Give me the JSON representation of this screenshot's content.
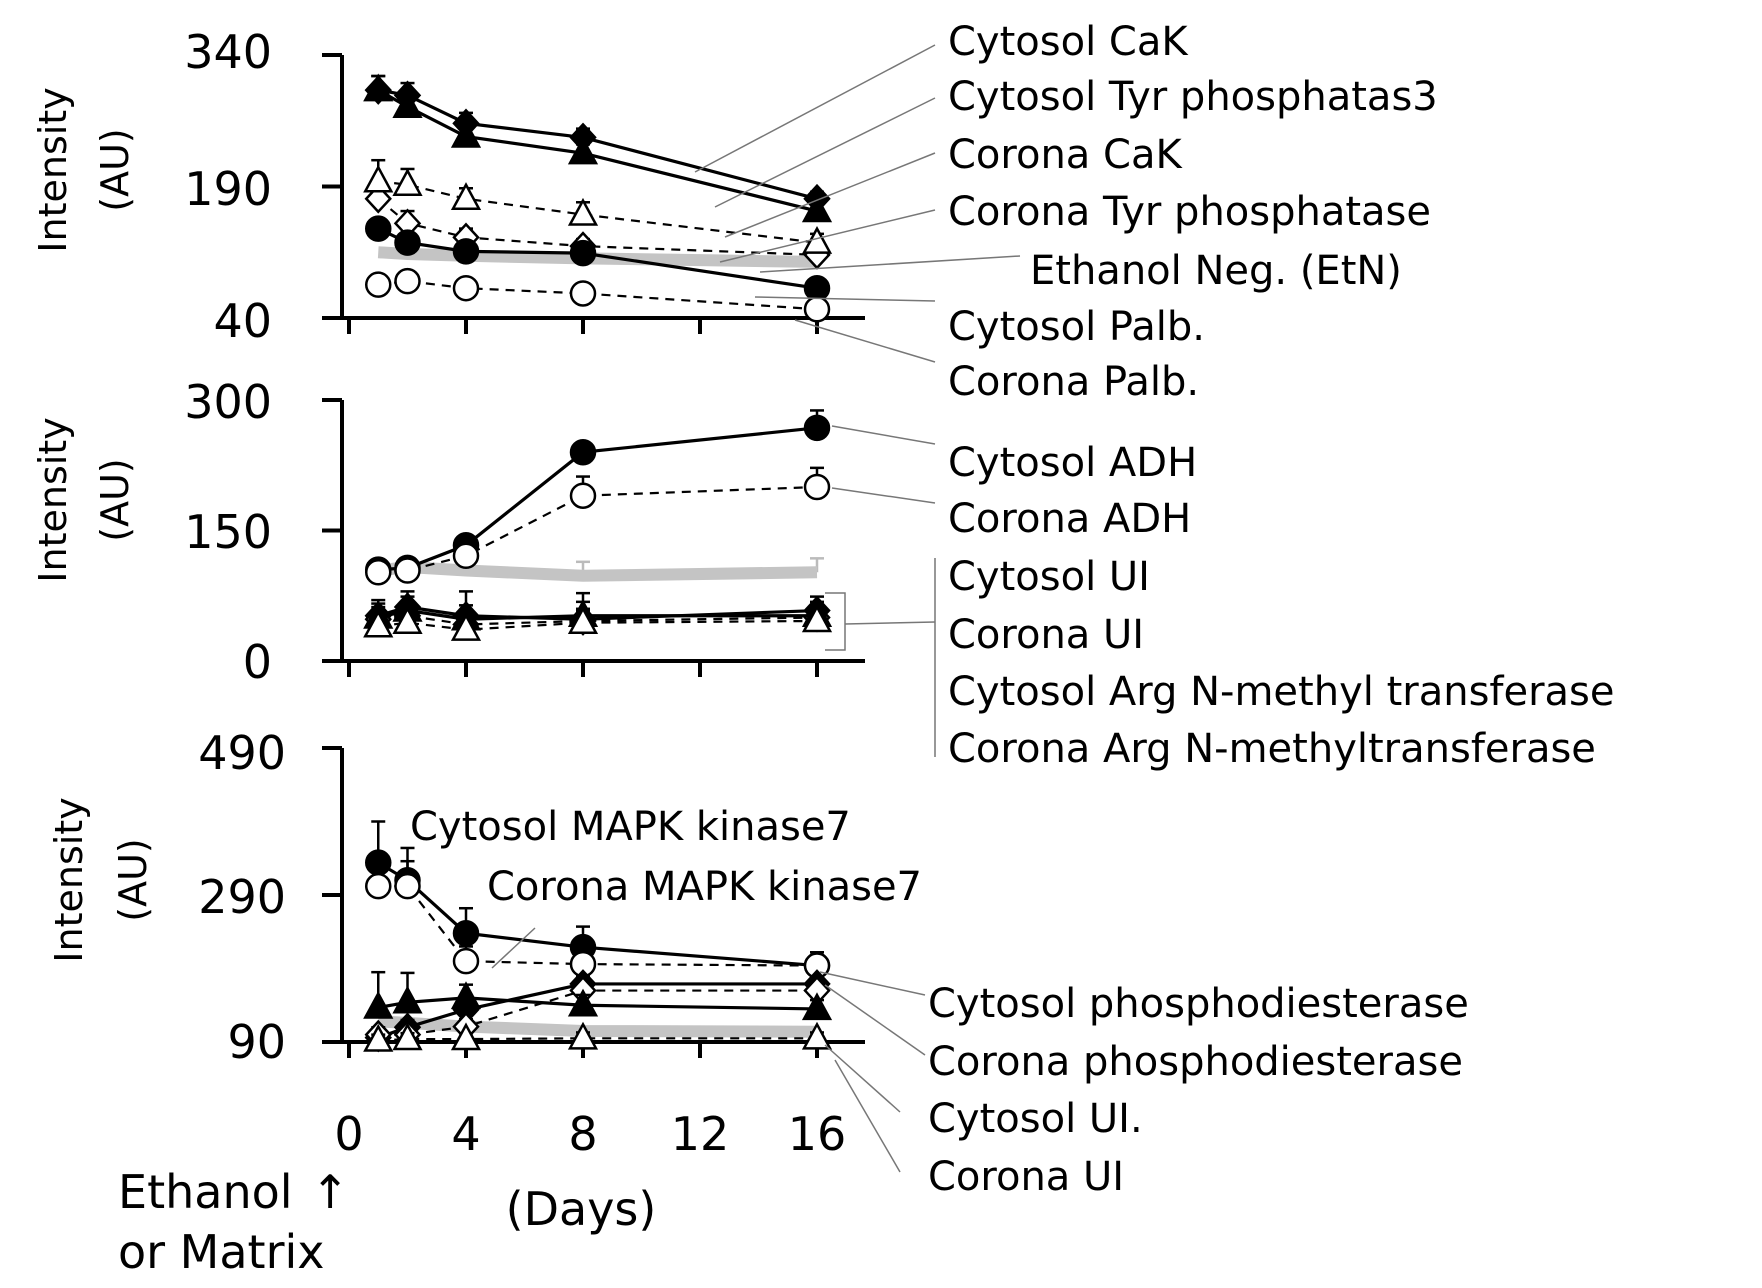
{
  "chart_data": [
    {
      "type": "line",
      "ylabel": [
        "Intensity",
        "(AU)"
      ],
      "ylim": [
        40,
        340
      ],
      "yticks": [
        "340",
        "190",
        "40"
      ],
      "x": [
        1,
        2,
        4,
        8,
        16
      ],
      "series": [
        {
          "name": "Cytosol  CaK",
          "values": [
            300,
            294,
            262,
            246,
            176
          ],
          "marker": "diamond",
          "filled": true,
          "dashed": false,
          "err": [
            16,
            14,
            12,
            10,
            8
          ]
        },
        {
          "name": "Cytosol Tyr phosphatas3",
          "values": [
            300,
            281,
            247,
            228,
            162
          ],
          "marker": "triangle",
          "filled": true,
          "dashed": false,
          "err": [
            16,
            14,
            12,
            10,
            8
          ]
        },
        {
          "name": "Corona CaK",
          "values": [
            176,
            148,
            132,
            122,
            112
          ],
          "marker": "diamond",
          "filled": false,
          "dashed": true,
          "err": [
            14,
            14,
            10,
            8,
            6
          ]
        },
        {
          "name": "Corona Tyr phosphatase",
          "values": [
            196,
            192,
            176,
            158,
            126
          ],
          "marker": "triangle",
          "filled": false,
          "dashed": true,
          "err": [
            24,
            18,
            12,
            14,
            10
          ]
        },
        {
          "name": "Ethanol Neg. (EtN)",
          "values": [
            115,
            113,
            111,
            108,
            104
          ],
          "marker": "none",
          "filled": false,
          "dashed": false,
          "err": [
            0,
            0,
            0,
            0,
            0
          ],
          "gray": true
        },
        {
          "name": "Cytosol Palb.",
          "values": [
            142,
            126,
            116,
            114,
            74
          ],
          "marker": "circle",
          "filled": true,
          "dashed": false,
          "err": [
            0,
            0,
            0,
            0,
            0
          ]
        },
        {
          "name": "Corona Palb.",
          "values": [
            78,
            82,
            74,
            68,
            50
          ],
          "marker": "circle",
          "filled": false,
          "dashed": true,
          "err": [
            0,
            0,
            0,
            0,
            0
          ]
        }
      ]
    },
    {
      "type": "line",
      "ylabel": [
        "Intensity",
        "(AU)"
      ],
      "ylim": [
        0,
        300
      ],
      "yticks": [
        "300",
        "150",
        "0"
      ],
      "x": [
        1,
        2,
        4,
        8,
        16
      ],
      "series": [
        {
          "name": "Cytosol  ADH",
          "values": [
            105,
            107,
            133,
            240,
            268
          ],
          "marker": "circle",
          "filled": true,
          "dashed": false,
          "err": [
            0,
            0,
            0,
            0,
            20
          ]
        },
        {
          "name": "Corona ADH",
          "values": [
            102,
            104,
            121,
            190,
            200
          ],
          "marker": "circle",
          "filled": false,
          "dashed": true,
          "err": [
            0,
            0,
            0,
            22,
            22
          ]
        },
        {
          "name": "Ethanol Neg. (EtN)",
          "values": [
            104,
            108,
            104,
            98,
            102
          ],
          "marker": "none",
          "filled": false,
          "dashed": false,
          "err": [
            0,
            0,
            0,
            16,
            16
          ],
          "gray": true
        },
        {
          "name": "Cytosol UI",
          "values": [
            52,
            62,
            52,
            48,
            58
          ],
          "marker": "diamond",
          "filled": true,
          "dashed": false,
          "err": [
            18,
            18,
            28,
            30,
            16
          ]
        },
        {
          "name": "Corona UI",
          "values": [
            48,
            52,
            42,
            46,
            50
          ],
          "marker": "diamond",
          "filled": false,
          "dashed": true,
          "err": [
            14,
            14,
            14,
            14,
            14
          ]
        },
        {
          "name": "Cytosol Arg N-methyl transferase",
          "values": [
            50,
            58,
            48,
            52,
            52
          ],
          "marker": "triangle",
          "filled": true,
          "dashed": false,
          "err": [
            16,
            16,
            16,
            16,
            16
          ]
        },
        {
          "name": "Corona Arg N-methyltransferase",
          "values": [
            40,
            44,
            36,
            44,
            46
          ],
          "marker": "triangle",
          "filled": false,
          "dashed": true,
          "err": [
            14,
            14,
            14,
            14,
            14
          ]
        }
      ]
    },
    {
      "type": "line",
      "ylabel": [
        "Intensity",
        "(AU)"
      ],
      "ylim": [
        90,
        490
      ],
      "yticks": [
        "490",
        "290",
        "90"
      ],
      "x": [
        1,
        2,
        4,
        8,
        16
      ],
      "xticks": [
        "0",
        "4",
        "8",
        "12",
        "16"
      ],
      "xlabel": "(Days)",
      "series": [
        {
          "name": "Cytosol  MAPK kinase7",
          "values": [
            334,
            310,
            238,
            219,
            194
          ],
          "marker": "circle",
          "filled": true,
          "dashed": false,
          "err": [
            56,
            44,
            34,
            28,
            18
          ]
        },
        {
          "name": "Corona MAPK kinase7",
          "values": [
            302,
            302,
            200,
            196,
            194
          ],
          "marker": "circle",
          "filled": false,
          "dashed": true,
          "err": [
            34,
            34,
            20,
            18,
            18
          ]
        },
        {
          "name": "Cytosol phosphodiesterase",
          "values": [
            96,
            110,
            134,
            169,
            169
          ],
          "marker": "diamond",
          "filled": true,
          "dashed": false,
          "err": [
            10,
            10,
            10,
            10,
            10
          ]
        },
        {
          "name": "Corona phosphodiesterase",
          "values": [
            100,
            100,
            111,
            160,
            160
          ],
          "marker": "diamond",
          "filled": false,
          "dashed": true,
          "err": [
            10,
            10,
            10,
            10,
            10
          ]
        },
        {
          "name": "Cytosol UI.",
          "values": [
            137,
            144,
            150,
            140,
            135
          ],
          "marker": "triangle",
          "filled": true,
          "dashed": false,
          "err": [
            48,
            40,
            18,
            14,
            12
          ]
        },
        {
          "name": "Corona UI",
          "values": [
            92,
            94,
            94,
            95,
            95
          ],
          "marker": "triangle",
          "filled": false,
          "dashed": true,
          "err": [
            8,
            8,
            8,
            8,
            8
          ]
        },
        {
          "name": "Ethanol Neg. (EtN)",
          "values": [
            118,
            116,
            111,
            105,
            104
          ],
          "marker": "none",
          "filled": false,
          "dashed": false,
          "err": [
            0,
            0,
            0,
            0,
            0
          ],
          "gray": true
        }
      ]
    }
  ],
  "labels": {
    "p1": [
      "Cytosol  CaK",
      "Cytosol Tyr phosphatas3",
      "Corona CaK",
      "Corona Tyr phosphatase",
      "Ethanol Neg. (EtN)",
      "Cytosol Palb.",
      "Corona Palb."
    ],
    "p2": [
      "Cytosol  ADH",
      "Corona ADH",
      "Cytosol UI",
      "Corona UI",
      "Cytosol Arg N-methyl transferase",
      "Corona Arg N-methyltransferase"
    ],
    "p3_inside": [
      "Cytosol  MAPK kinase7",
      "Corona MAPK kinase7"
    ],
    "p3_right": [
      "Cytosol phosphodiesterase",
      "Corona phosphodiesterase",
      "Cytosol UI.",
      "Corona UI"
    ]
  },
  "footer": {
    "ethanol_line1": "Ethanol",
    "ethanol_line2": "or Matrix",
    "arrow": "↑"
  }
}
